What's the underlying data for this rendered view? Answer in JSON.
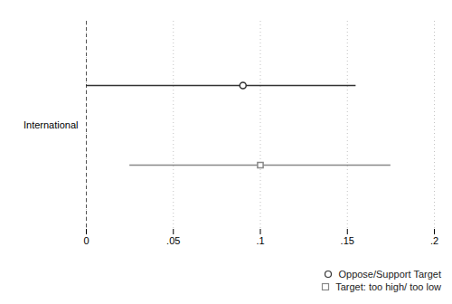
{
  "chart_data": {
    "type": "interval",
    "categories": [
      "International"
    ],
    "series": [
      {
        "name": "Oppose/Support Target",
        "color": "#333333",
        "marker": "circle",
        "values": [
          0.09
        ],
        "low": [
          0.0
        ],
        "high": [
          0.155
        ]
      },
      {
        "name": "Target: too high/ too low",
        "color": "#888888",
        "marker": "square",
        "values": [
          0.1
        ],
        "low": [
          0.025
        ],
        "high": [
          0.175
        ]
      }
    ],
    "xlim": [
      0.0,
      0.2
    ],
    "xticks": [
      0,
      {
        "value": 0.05,
        "label": ".05"
      },
      {
        "value": 0.1,
        "label": ".1"
      },
      {
        "value": 0.15,
        "label": ".15"
      },
      {
        "value": 0.2,
        "label": ".2"
      }
    ],
    "grid": true,
    "legend": "lower right"
  }
}
